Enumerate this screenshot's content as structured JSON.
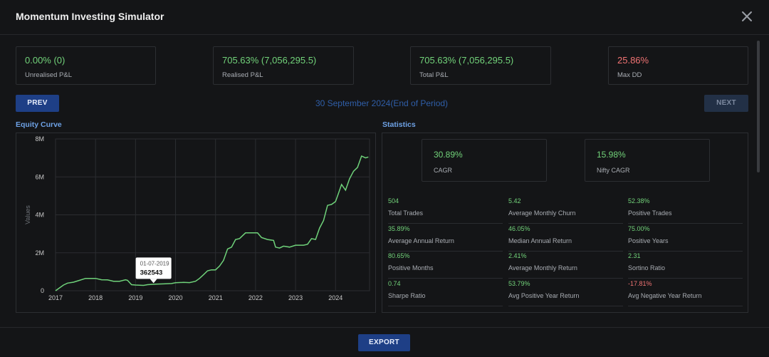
{
  "title": "Momentum Investing Simulator",
  "kpis": [
    {
      "value": "0.00% (0)",
      "label": "Unrealised P&L",
      "tone": "green"
    },
    {
      "value": "705.63% (7,056,295.5)",
      "label": "Realised P&L",
      "tone": "green"
    },
    {
      "value": "705.63% (7,056,295.5)",
      "label": "Total P&L",
      "tone": "green"
    },
    {
      "value": "25.86%",
      "label": "Max DD",
      "tone": "red"
    }
  ],
  "nav": {
    "prev": "PREV",
    "next": "NEXT",
    "date": "30 September 2024(End of Period)"
  },
  "sections": {
    "equity": "Equity Curve",
    "stats": "Statistics"
  },
  "tooltip": {
    "date": "01-07-2019",
    "value": "362543"
  },
  "stat_kpis": [
    {
      "value": "30.89%",
      "label": "CAGR"
    },
    {
      "value": "15.98%",
      "label": "Nifty CAGR"
    }
  ],
  "stats": [
    {
      "value": "504",
      "label": "Total Trades",
      "tone": "green"
    },
    {
      "value": "5.42",
      "label": "Average Monthly Churn",
      "tone": "green"
    },
    {
      "value": "52.38%",
      "label": "Positive Trades",
      "tone": "green"
    },
    {
      "value": "35.89%",
      "label": "Average Annual Return",
      "tone": "green"
    },
    {
      "value": "46.05%",
      "label": "Median Annual Return",
      "tone": "green"
    },
    {
      "value": "75.00%",
      "label": "Positive Years",
      "tone": "green"
    },
    {
      "value": "80.65%",
      "label": "Positive Months",
      "tone": "green"
    },
    {
      "value": "2.41%",
      "label": "Average Monthly Return",
      "tone": "green"
    },
    {
      "value": "2.31",
      "label": "Sortino Ratio",
      "tone": "green"
    },
    {
      "value": "0.74",
      "label": "Sharpe Ratio",
      "tone": "green"
    },
    {
      "value": "53.79%",
      "label": "Avg Positive Year Return",
      "tone": "green"
    },
    {
      "value": "-17.81%",
      "label": "Avg Negative Year Return",
      "tone": "red"
    }
  ],
  "footer": {
    "export": "EXPORT"
  },
  "colors": {
    "line": "#6fd27a",
    "accent": "#1e3f86",
    "positive": "#72d37a",
    "negative": "#f07373"
  },
  "chart_data": {
    "type": "line",
    "xlabel": "",
    "ylabel": "Values",
    "ylim": [
      0,
      8000000
    ],
    "xlim": [
      2017.0,
      2024.85
    ],
    "y_ticks": [
      "0",
      "2M",
      "4M",
      "6M",
      "8M"
    ],
    "x_ticks": [
      "2017",
      "2018",
      "2019",
      "2020",
      "2021",
      "2022",
      "2023",
      "2024"
    ],
    "grid": true,
    "series": [
      {
        "x": [
          2017.0,
          2017.1,
          2017.2,
          2017.3,
          2017.45,
          2017.6,
          2017.75,
          2018.0,
          2018.15,
          2018.3,
          2018.45,
          2018.6,
          2018.75,
          2018.8,
          2018.9,
          2019.0,
          2019.2,
          2019.3,
          2019.5,
          2019.7,
          2019.9,
          2020.0,
          2020.2,
          2020.35,
          2020.5,
          2020.6,
          2020.7,
          2020.8,
          2020.9,
          2021.0,
          2021.1,
          2021.2,
          2021.3,
          2021.4,
          2021.5,
          2021.6,
          2021.75,
          2021.9,
          2022.05,
          2022.15,
          2022.3,
          2022.45,
          2022.5,
          2022.6,
          2022.7,
          2022.85,
          2023.0,
          2023.2,
          2023.3,
          2023.4,
          2023.5,
          2023.6,
          2023.7,
          2023.8,
          2023.9,
          2024.0,
          2024.05,
          2024.15,
          2024.25,
          2024.35,
          2024.45,
          2024.55,
          2024.65,
          2024.75,
          2024.82
        ],
        "y": [
          0,
          150000,
          300000,
          400000,
          450000,
          550000,
          650000,
          650000,
          580000,
          570000,
          500000,
          500000,
          580000,
          550000,
          320000,
          300000,
          280000,
          320000,
          350000,
          360000,
          380000,
          420000,
          440000,
          430000,
          500000,
          650000,
          850000,
          1050000,
          1100000,
          1100000,
          1300000,
          1600000,
          2200000,
          2300000,
          2700000,
          2750000,
          3050000,
          3050000,
          3050000,
          2800000,
          2700000,
          2650000,
          2300000,
          2250000,
          2350000,
          2300000,
          2400000,
          2400000,
          2450000,
          2750000,
          2700000,
          3300000,
          3700000,
          4500000,
          4550000,
          4700000,
          5000000,
          5600000,
          5300000,
          5900000,
          6300000,
          6500000,
          7100000,
          7000000,
          7050000
        ]
      }
    ]
  }
}
